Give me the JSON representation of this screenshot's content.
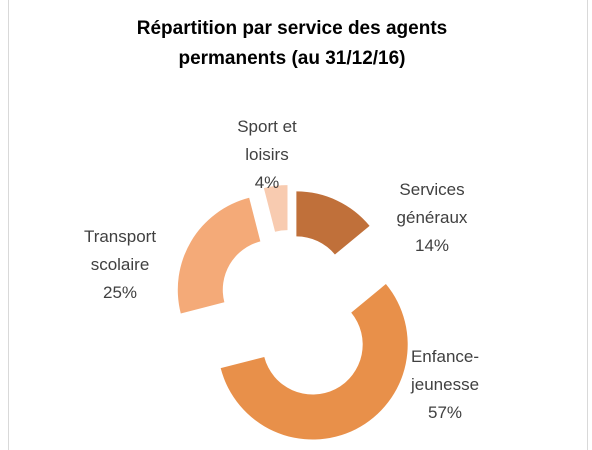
{
  "chart_data": {
    "type": "donut",
    "title": "Répartition par service des agents permanents (au 31/12/16)",
    "categories": [
      "Services généraux",
      "Enfance-jeunesse",
      "Transport scolaire",
      "Sport et loisirs"
    ],
    "values": [
      14,
      57,
      25,
      4
    ],
    "value_labels": [
      "14%",
      "57%",
      "25%",
      "4%"
    ],
    "colors": [
      "#c0703a",
      "#e8904a",
      "#f4aa78",
      "#f8cbb0"
    ]
  }
}
